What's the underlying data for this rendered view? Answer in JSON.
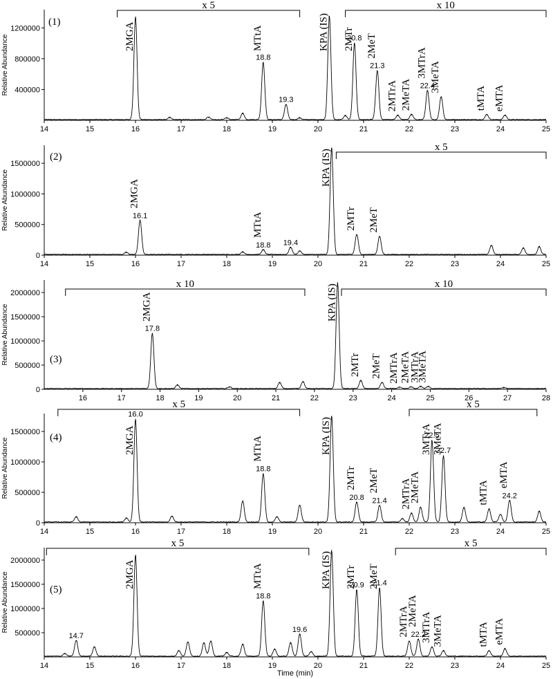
{
  "figure": {
    "x_axis_label": "Time (min)",
    "y_axis_label": "Relative Abundance"
  },
  "chart_data": [
    {
      "type": "line",
      "panel_label": "(1)",
      "xlim": [
        14,
        25
      ],
      "ylim": [
        0,
        1400000
      ],
      "x_ticks": [
        14,
        15,
        16,
        17,
        18,
        19,
        20,
        21,
        22,
        23,
        24,
        25
      ],
      "y_ticks": [
        400000,
        800000,
        1200000
      ],
      "y_tick_labels": [
        "400000",
        "800000",
        "1200000"
      ],
      "peaks": [
        {
          "x": 16.0,
          "y": 1340000,
          "label": "2MGA"
        },
        {
          "x": 16.75,
          "y": 30000
        },
        {
          "x": 17.6,
          "y": 35000
        },
        {
          "x": 18.0,
          "y": 25000
        },
        {
          "x": 18.35,
          "y": 85000
        },
        {
          "x": 18.8,
          "y": 750000,
          "label": "MTtA",
          "value_label": "18.8"
        },
        {
          "x": 19.3,
          "y": 200000,
          "value_label": "19.3"
        },
        {
          "x": 19.6,
          "y": 25000
        },
        {
          "x": 20.25,
          "y": 1350000,
          "label": "KPA (IS)"
        },
        {
          "x": 20.6,
          "y": 55000
        },
        {
          "x": 20.8,
          "y": 1000000,
          "label": "2MTr",
          "value_label": "20.8"
        },
        {
          "x": 21.3,
          "y": 640000,
          "label": "2MeT",
          "value_label": "21.3"
        },
        {
          "x": 21.75,
          "y": 60000,
          "label": "2MTrA"
        },
        {
          "x": 22.05,
          "y": 70000,
          "label": "2MeTA"
        },
        {
          "x": 22.4,
          "y": 380000,
          "label": "3MTrA",
          "value_label": "22.4"
        },
        {
          "x": 22.7,
          "y": 300000,
          "label": "3MeTA"
        },
        {
          "x": 23.7,
          "y": 70000,
          "label": "tMTA"
        },
        {
          "x": 24.1,
          "y": 60000,
          "label": "eMTA"
        }
      ],
      "brackets": [
        {
          "from": 15.6,
          "to": 19.6,
          "text": "x 5"
        },
        {
          "from": 20.6,
          "to": 25,
          "text": "x 10"
        }
      ]
    },
    {
      "type": "line",
      "panel_label": "(2)",
      "xlim": [
        14,
        25
      ],
      "ylim": [
        0,
        1750000
      ],
      "x_ticks": [
        14,
        15,
        16,
        17,
        18,
        19,
        20,
        21,
        22,
        23,
        24,
        25
      ],
      "y_ticks": [
        0,
        500000,
        1000000,
        1500000
      ],
      "y_tick_labels": [
        "0",
        "500000",
        "1000000",
        "1500000"
      ],
      "peaks": [
        {
          "x": 15.8,
          "y": 40000
        },
        {
          "x": 16.1,
          "y": 560000,
          "label": "2MGA",
          "value_label": "16.1"
        },
        {
          "x": 18.35,
          "y": 45000
        },
        {
          "x": 18.8,
          "y": 80000,
          "label": "MTtA",
          "value_label": "18.8"
        },
        {
          "x": 19.4,
          "y": 120000,
          "value_label": "19.4"
        },
        {
          "x": 19.6,
          "y": 60000
        },
        {
          "x": 20.3,
          "y": 1750000,
          "label": "KPA (IS)"
        },
        {
          "x": 20.85,
          "y": 330000,
          "label": "2MTr"
        },
        {
          "x": 21.35,
          "y": 300000,
          "label": "2MeT"
        },
        {
          "x": 23.8,
          "y": 150000
        },
        {
          "x": 24.5,
          "y": 110000
        },
        {
          "x": 24.85,
          "y": 130000
        }
      ],
      "brackets": [
        {
          "from": 20.4,
          "to": 25,
          "text": "x 5"
        }
      ]
    },
    {
      "type": "line",
      "panel_label": "(3)",
      "xlim": [
        15,
        28
      ],
      "ylim": [
        0,
        2200000
      ],
      "x_ticks": [
        16,
        17,
        18,
        19,
        20,
        21,
        22,
        23,
        24,
        25,
        26,
        27,
        28
      ],
      "y_ticks": [
        0,
        500000,
        1000000,
        1500000,
        2000000
      ],
      "y_tick_labels": [
        "0",
        "500000",
        "1000000",
        "1500000",
        "2000000"
      ],
      "peaks": [
        {
          "x": 17.8,
          "y": 1150000,
          "label": "2MGA",
          "value_label": "17.8"
        },
        {
          "x": 18.45,
          "y": 80000
        },
        {
          "x": 19.8,
          "y": 40000
        },
        {
          "x": 21.1,
          "y": 130000
        },
        {
          "x": 21.7,
          "y": 150000
        },
        {
          "x": 22.6,
          "y": 2200000,
          "label": "KPA (IS)"
        },
        {
          "x": 23.2,
          "y": 170000,
          "label": "2MTr"
        },
        {
          "x": 23.75,
          "y": 130000,
          "label": "2MeT"
        },
        {
          "x": 24.2,
          "y": 30000,
          "label": "2MTrA"
        },
        {
          "x": 24.5,
          "y": 40000,
          "label": "2MeTA"
        },
        {
          "x": 24.75,
          "y": 50000,
          "label": "3MTrA"
        },
        {
          "x": 24.95,
          "y": 50000,
          "label": "3MeTA"
        },
        {
          "x": 26.9,
          "y": 25000
        }
      ],
      "brackets": [
        {
          "from": 15.55,
          "to": 21.75,
          "text": "x 10"
        },
        {
          "from": 22.7,
          "to": 28,
          "text": "x 10"
        }
      ]
    },
    {
      "type": "line",
      "panel_label": "(4)",
      "xlim": [
        14,
        25
      ],
      "ylim": [
        0,
        1750000
      ],
      "x_ticks": [
        14,
        15,
        16,
        17,
        18,
        19,
        20,
        21,
        22,
        23,
        24,
        25
      ],
      "y_ticks": [
        0,
        500000,
        1000000,
        1500000
      ],
      "y_tick_labels": [
        "0",
        "500000",
        "1000000",
        "1500000"
      ],
      "peaks": [
        {
          "x": 14.7,
          "y": 90000
        },
        {
          "x": 15.8,
          "y": 70000
        },
        {
          "x": 16.0,
          "y": 1700000,
          "label": "2MGA",
          "value_label": "16.0"
        },
        {
          "x": 16.8,
          "y": 100000
        },
        {
          "x": 18.35,
          "y": 350000
        },
        {
          "x": 18.8,
          "y": 800000,
          "label": "MTtA",
          "value_label": "18.8"
        },
        {
          "x": 19.1,
          "y": 90000
        },
        {
          "x": 19.6,
          "y": 280000
        },
        {
          "x": 20.3,
          "y": 1750000,
          "label": "KPA (IS)"
        },
        {
          "x": 20.85,
          "y": 330000,
          "label": "2MTr",
          "value_label": "20.8"
        },
        {
          "x": 21.35,
          "y": 280000,
          "label": "2MeT",
          "value_label": "21.4"
        },
        {
          "x": 21.85,
          "y": 60000
        },
        {
          "x": 22.05,
          "y": 150000,
          "label": "2MTrA"
        },
        {
          "x": 22.25,
          "y": 250000,
          "label": "2MeTA"
        },
        {
          "x": 22.5,
          "y": 1350000,
          "label": "3MTrA",
          "value_label": "22.5"
        },
        {
          "x": 22.75,
          "y": 1100000,
          "label": "3MeTA",
          "value_label": "22.7"
        },
        {
          "x": 23.2,
          "y": 240000
        },
        {
          "x": 23.75,
          "y": 220000,
          "label": "tMTA"
        },
        {
          "x": 24.0,
          "y": 130000
        },
        {
          "x": 24.2,
          "y": 360000,
          "label": "eMTA",
          "value_label": "24.2"
        },
        {
          "x": 24.85,
          "y": 180000
        }
      ],
      "brackets": [
        {
          "from": 14.3,
          "to": 19.6,
          "text": "x 5"
        },
        {
          "from": 22.0,
          "to": 24.8,
          "text": "x 5"
        }
      ]
    },
    {
      "type": "line",
      "panel_label": "(5)",
      "xlim": [
        14,
        25
      ],
      "ylim": [
        0,
        2200000
      ],
      "x_ticks": [
        14,
        15,
        16,
        17,
        18,
        19,
        20,
        21,
        22,
        23,
        24,
        25
      ],
      "y_ticks": [
        500000,
        1000000,
        1500000,
        2000000
      ],
      "y_tick_labels": [
        "500000",
        "1000000",
        "1500000",
        "2000000"
      ],
      "peaks": [
        {
          "x": 14.45,
          "y": 60000
        },
        {
          "x": 14.7,
          "y": 330000,
          "value_label": "14.7"
        },
        {
          "x": 15.1,
          "y": 200000
        },
        {
          "x": 16.0,
          "y": 2100000,
          "label": "2MGA"
        },
        {
          "x": 16.95,
          "y": 120000
        },
        {
          "x": 17.15,
          "y": 300000
        },
        {
          "x": 17.5,
          "y": 280000
        },
        {
          "x": 17.65,
          "y": 320000
        },
        {
          "x": 18.0,
          "y": 80000
        },
        {
          "x": 18.35,
          "y": 250000
        },
        {
          "x": 18.8,
          "y": 1150000,
          "label": "MTtA",
          "value_label": "18.8"
        },
        {
          "x": 19.05,
          "y": 150000
        },
        {
          "x": 19.4,
          "y": 280000
        },
        {
          "x": 19.6,
          "y": 460000,
          "value_label": "19.6"
        },
        {
          "x": 19.85,
          "y": 100000
        },
        {
          "x": 20.3,
          "y": 2200000,
          "label": "KPA (IS)"
        },
        {
          "x": 20.85,
          "y": 1380000,
          "label": "2MTr",
          "value_label": "20.9"
        },
        {
          "x": 21.35,
          "y": 1420000,
          "label": "2MeT",
          "value_label": "21.4"
        },
        {
          "x": 22.0,
          "y": 320000,
          "label": "2MTrA"
        },
        {
          "x": 22.2,
          "y": 360000,
          "label": "2MeTA",
          "value_label": "22.2"
        },
        {
          "x": 22.5,
          "y": 200000,
          "label": "3MTrA"
        },
        {
          "x": 22.75,
          "y": 120000,
          "label": "3MeTA"
        },
        {
          "x": 23.75,
          "y": 120000,
          "label": "tMTA"
        },
        {
          "x": 24.1,
          "y": 160000,
          "label": "eMTA"
        }
      ],
      "brackets": [
        {
          "from": 14.05,
          "to": 19.8,
          "text": "x 5"
        },
        {
          "from": 21.7,
          "to": 25,
          "text": "x 5"
        }
      ]
    }
  ]
}
